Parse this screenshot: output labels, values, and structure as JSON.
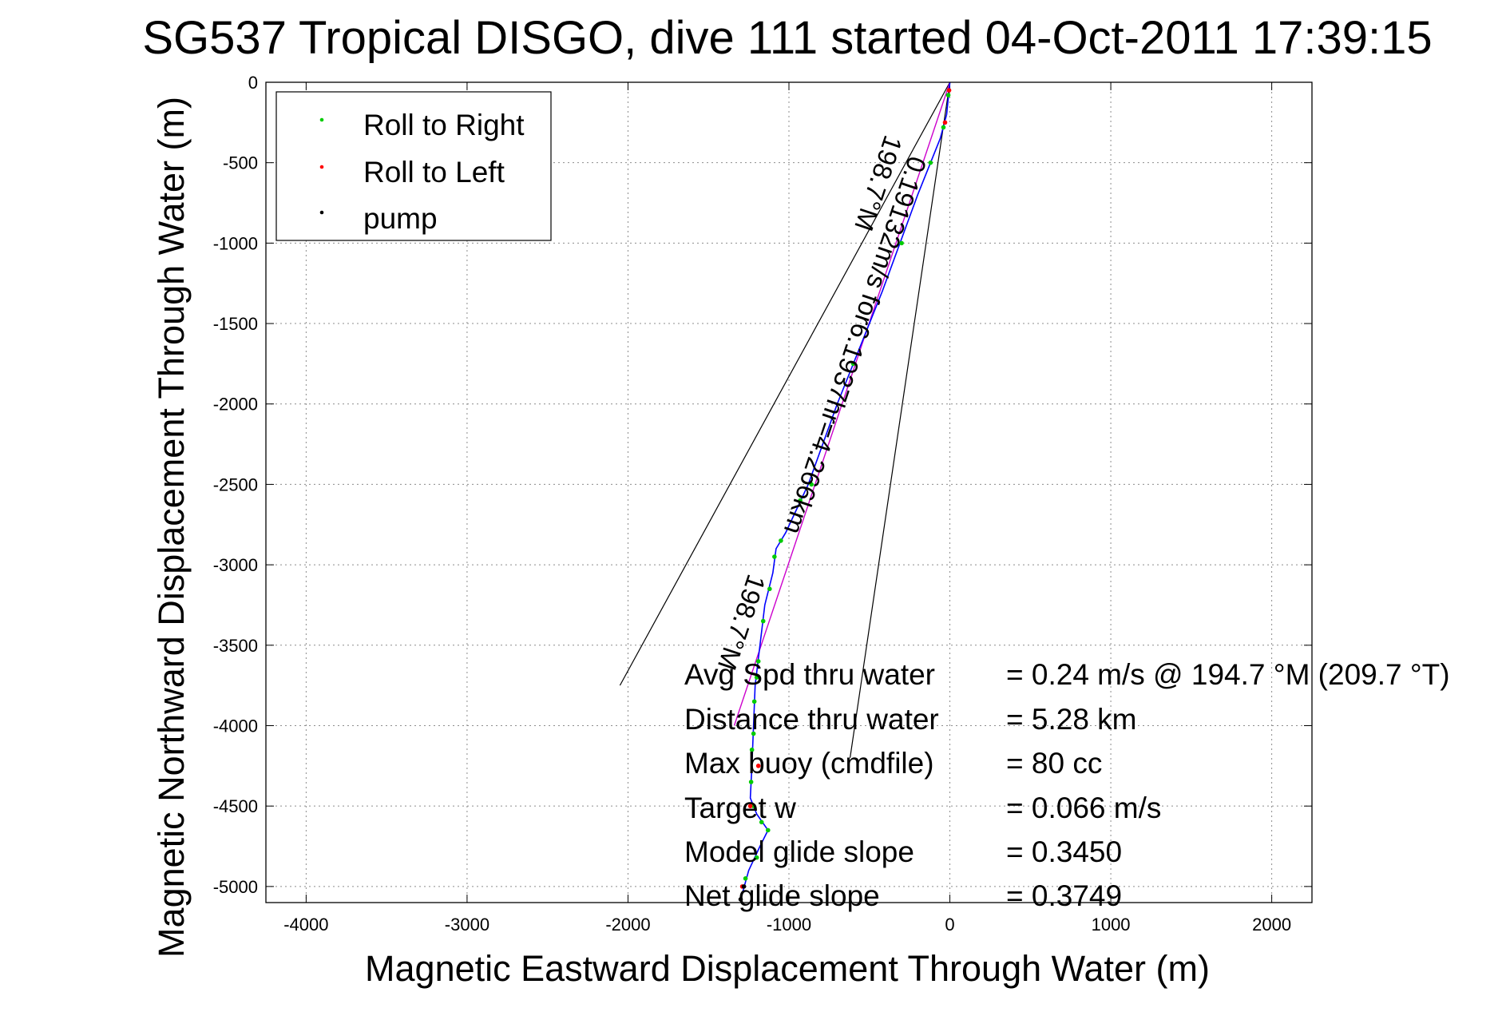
{
  "chart_data": {
    "type": "line",
    "title": "SG537 Tropical DISGO, dive 111 started 04-Oct-2011 17:39:15",
    "xlabel": "Magnetic Eastward Displacement Through Water (m)",
    "ylabel": "Magnetic Northward Displacement Through Water (m)",
    "xlim": [
      -4250,
      2250
    ],
    "ylim": [
      -5100,
      0
    ],
    "xticks": [
      -4000,
      -3000,
      -2000,
      -1000,
      0,
      1000,
      2000
    ],
    "yticks": [
      0,
      -500,
      -1000,
      -1500,
      -2000,
      -2500,
      -3000,
      -3500,
      -4000,
      -4500,
      -5000
    ],
    "grid": true,
    "legend_location": "top-left",
    "legend": [
      {
        "label": "Roll to Right",
        "color": "#00cc00"
      },
      {
        "label": "Roll to Left",
        "color": "#ff0000"
      },
      {
        "label": "pump",
        "color": "#000000"
      }
    ],
    "track": {
      "color": "#0000ff",
      "points": [
        [
          0,
          0
        ],
        [
          -20,
          -200
        ],
        [
          -60,
          -350
        ],
        [
          -200,
          -700
        ],
        [
          -420,
          -1300
        ],
        [
          -700,
          -2000
        ],
        [
          -880,
          -2500
        ],
        [
          -950,
          -2650
        ],
        [
          -1020,
          -2800
        ],
        [
          -1080,
          -2900
        ],
        [
          -1100,
          -3050
        ],
        [
          -1150,
          -3250
        ],
        [
          -1180,
          -3500
        ],
        [
          -1210,
          -3750
        ],
        [
          -1220,
          -4000
        ],
        [
          -1230,
          -4250
        ],
        [
          -1240,
          -4450
        ],
        [
          -1200,
          -4550
        ],
        [
          -1130,
          -4650
        ],
        [
          -1180,
          -4750
        ],
        [
          -1250,
          -4900
        ],
        [
          -1300,
          -5080
        ]
      ]
    },
    "roll_right": [
      [
        -10,
        -80
      ],
      [
        -40,
        -280
      ],
      [
        -120,
        -500
      ],
      [
        -300,
        -1000
      ],
      [
        -600,
        -1750
      ],
      [
        -860,
        -2500
      ],
      [
        -930,
        -2600
      ],
      [
        -1050,
        -2850
      ],
      [
        -1090,
        -2950
      ],
      [
        -1120,
        -3150
      ],
      [
        -1160,
        -3350
      ],
      [
        -1190,
        -3600
      ],
      [
        -1200,
        -3700
      ],
      [
        -1215,
        -3850
      ],
      [
        -1220,
        -4050
      ],
      [
        -1230,
        -4150
      ],
      [
        -1235,
        -4350
      ],
      [
        -1220,
        -4500
      ],
      [
        -1170,
        -4600
      ],
      [
        -1130,
        -4650
      ],
      [
        -1200,
        -4820
      ],
      [
        -1270,
        -4950
      ]
    ],
    "roll_left": [
      [
        -5,
        -50
      ],
      [
        -30,
        -250
      ],
      [
        -1190,
        -4250
      ],
      [
        -1240,
        -4500
      ],
      [
        -1290,
        -5000
      ]
    ],
    "pump": [
      [
        -1300,
        -5080
      ],
      [
        -1280,
        -5000
      ]
    ],
    "magenta_path": [
      [
        0,
        0
      ],
      [
        -1340,
        -4000
      ]
    ],
    "cone": {
      "origin": [
        0,
        0
      ],
      "left_end": [
        -2050,
        -3750
      ],
      "right_end": [
        -620,
        -4200
      ]
    },
    "annotations": [
      {
        "text": "0.19132m/s for6.1937hr=4.266km",
        "pos": [
          -250,
          -450
        ]
      },
      {
        "text": "198.7°M",
        "pos": [
          -400,
          -320
        ]
      },
      {
        "text": "198.7°M",
        "pos": [
          -1250,
          -3050
        ]
      }
    ],
    "stats": [
      {
        "label": "Avg Spd thru water",
        "value": "=  0.24 m/s @ 194.7 °M (209.7 °T)"
      },
      {
        "label": "Distance thru water",
        "value": "=  5.28 km"
      },
      {
        "label": "Max buoy (cmdfile)",
        "value": "= 80 cc"
      },
      {
        "label": "Target w",
        "value": "= 0.066 m/s"
      },
      {
        "label": "Model glide slope",
        "value": "= 0.3450"
      },
      {
        "label": "Net glide slope",
        "value": "= 0.3749"
      }
    ]
  }
}
